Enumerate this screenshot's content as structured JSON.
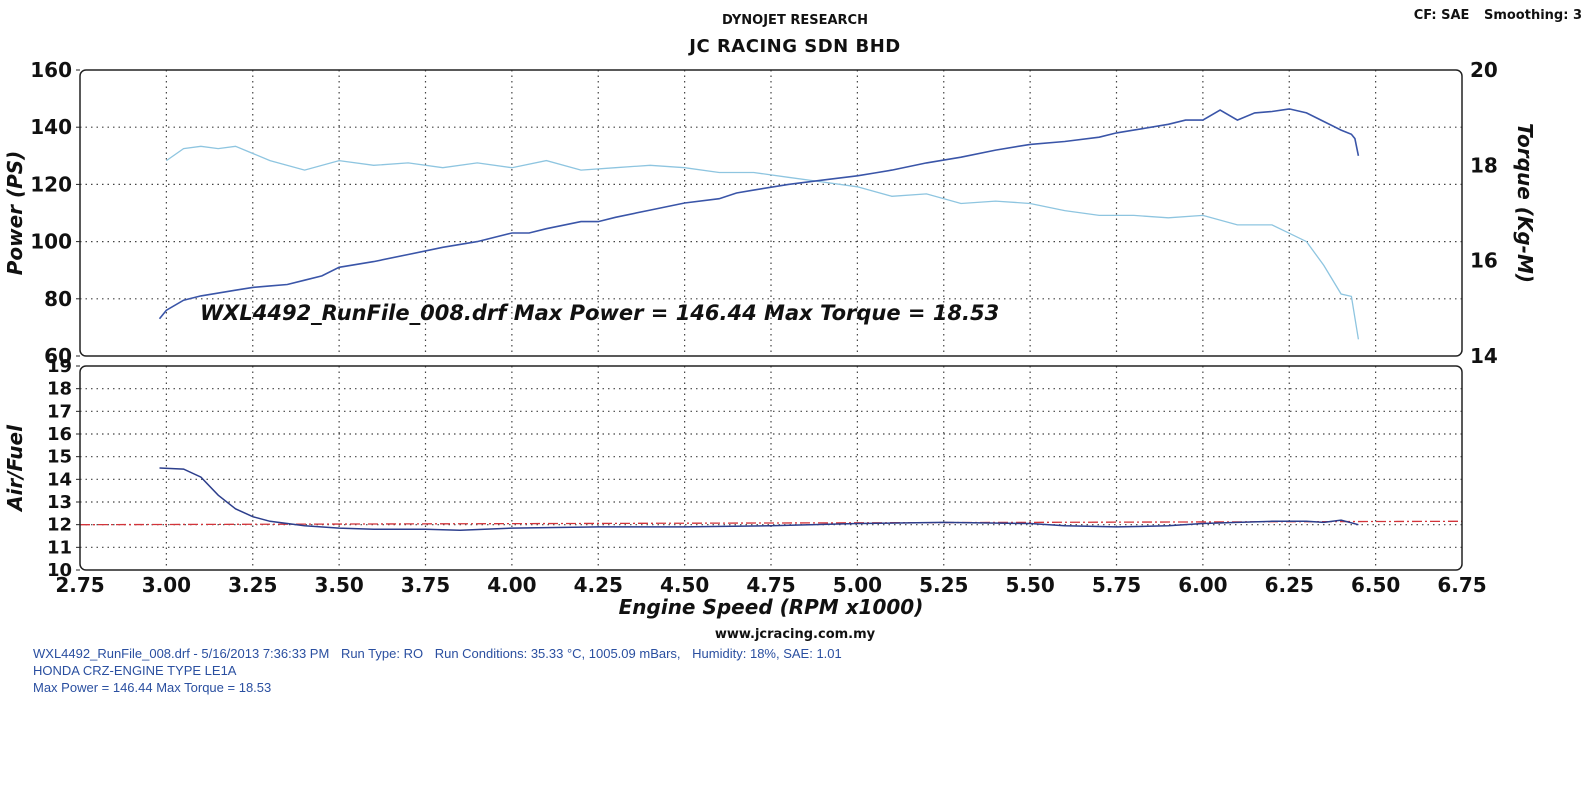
{
  "header": {
    "subtitle": "DYNOJET RESEARCH",
    "title": "JC RACING SDN BHD",
    "cf_label": "CF: SAE",
    "smoothing_label": "Smoothing: 3"
  },
  "website": "www.jcracing.com.my",
  "footer": {
    "run_part1": "WXL4492_RunFile_008.drf - 5/16/2013 7:36:33 PM",
    "run_part2": "Run Type: RO",
    "run_part3": "Run Conditions: 35.33 °C, 1005.09 mBars,",
    "run_part4": "Humidity: 18%, SAE: 1.01",
    "vehicle": "HONDA CRZ-ENGINE TYPE LE1A",
    "max_line": "Max Power = 146.44  Max Torque = 18.53"
  },
  "colors": {
    "power_line": "#3a55a8",
    "torque_line": "#8ec5e0",
    "afr_line": "#2c3e8c",
    "afr_target": "#d2343a",
    "grid": "#444444",
    "frame": "#222222"
  },
  "chart_data": [
    {
      "type": "line",
      "title": "",
      "annotation": "WXL4492_RunFile_008.drf Max Power = 146.44     Max Torque = 18.53",
      "xlabel": "",
      "ylabel": "Power (PS)",
      "y2label": "Torque (Kg-M)",
      "xlim": [
        2.75,
        6.75
      ],
      "ylim": [
        60,
        160
      ],
      "y2lim": [
        14,
        20
      ],
      "yticks": [
        60,
        80,
        100,
        120,
        140,
        160
      ],
      "y2ticks": [
        14,
        16,
        18,
        20
      ],
      "grid": true,
      "series": [
        {
          "name": "Power",
          "axis": "left",
          "x": [
            2.98,
            3.0,
            3.05,
            3.1,
            3.15,
            3.2,
            3.25,
            3.3,
            3.35,
            3.4,
            3.45,
            3.5,
            3.6,
            3.7,
            3.8,
            3.9,
            4.0,
            4.05,
            4.1,
            4.2,
            4.25,
            4.3,
            4.4,
            4.5,
            4.6,
            4.65,
            4.7,
            4.8,
            4.9,
            5.0,
            5.05,
            5.1,
            5.2,
            5.3,
            5.4,
            5.5,
            5.6,
            5.7,
            5.75,
            5.8,
            5.9,
            5.95,
            6.0,
            6.05,
            6.1,
            6.15,
            6.2,
            6.25,
            6.3,
            6.35,
            6.4,
            6.43,
            6.44,
            6.45
          ],
          "values": [
            73,
            76,
            79.5,
            81,
            82,
            83,
            84,
            84.5,
            85,
            86.5,
            88,
            91,
            93,
            95.5,
            98,
            100,
            103,
            103,
            104.5,
            107,
            107,
            108.5,
            111,
            113.5,
            115,
            117,
            118,
            120,
            121.5,
            123,
            124,
            125,
            127.5,
            129.5,
            132,
            134,
            135,
            136.5,
            138,
            139,
            141,
            142.5,
            142.5,
            146,
            142.5,
            145,
            145.5,
            146.4,
            145,
            142,
            139,
            137.5,
            136,
            130
          ]
        },
        {
          "name": "Torque",
          "axis": "right",
          "x": [
            3.0,
            3.05,
            3.1,
            3.15,
            3.2,
            3.3,
            3.4,
            3.5,
            3.6,
            3.7,
            3.8,
            3.9,
            4.0,
            4.1,
            4.2,
            4.3,
            4.4,
            4.5,
            4.6,
            4.7,
            4.8,
            4.9,
            5.0,
            5.1,
            5.2,
            5.3,
            5.4,
            5.5,
            5.6,
            5.7,
            5.8,
            5.9,
            6.0,
            6.1,
            6.2,
            6.3,
            6.35,
            6.4,
            6.43,
            6.45
          ],
          "values": [
            18.1,
            18.35,
            18.4,
            18.35,
            18.4,
            18.1,
            17.9,
            18.1,
            18.0,
            18.05,
            17.95,
            18.05,
            17.95,
            18.1,
            17.9,
            17.95,
            18.0,
            17.95,
            17.85,
            17.85,
            17.75,
            17.65,
            17.55,
            17.35,
            17.4,
            17.2,
            17.25,
            17.2,
            17.05,
            16.95,
            16.95,
            16.9,
            16.95,
            16.75,
            16.75,
            16.4,
            15.9,
            15.3,
            15.25,
            14.35
          ]
        }
      ]
    },
    {
      "type": "line",
      "title": "",
      "xlabel": "Engine Speed (RPM x1000)",
      "ylabel": "Air/Fuel",
      "xlim": [
        2.75,
        6.75
      ],
      "ylim": [
        10,
        19
      ],
      "xticks": [
        2.75,
        3.0,
        3.25,
        3.5,
        3.75,
        4.0,
        4.25,
        4.5,
        4.75,
        5.0,
        5.25,
        5.5,
        5.75,
        6.0,
        6.25,
        6.5,
        6.75
      ],
      "xticklabels": [
        "2.75",
        "3.00",
        "3.25",
        "3.50",
        "3.75",
        "4.00",
        "4.25",
        "4.50",
        "4.75",
        "5.00",
        "5.25",
        "5.50",
        "5.75",
        "6.00",
        "6.25",
        "6.50",
        "6.75"
      ],
      "yticks": [
        10,
        11,
        12,
        13,
        14,
        15,
        16,
        17,
        18,
        19
      ],
      "grid": true,
      "series": [
        {
          "name": "Air/Fuel",
          "x": [
            2.98,
            3.05,
            3.1,
            3.15,
            3.2,
            3.25,
            3.3,
            3.35,
            3.4,
            3.5,
            3.6,
            3.75,
            3.85,
            4.0,
            4.25,
            4.5,
            4.75,
            5.0,
            5.25,
            5.5,
            5.6,
            5.75,
            5.9,
            6.0,
            6.1,
            6.2,
            6.3,
            6.35,
            6.4,
            6.45
          ],
          "values": [
            14.5,
            14.45,
            14.1,
            13.3,
            12.7,
            12.35,
            12.15,
            12.05,
            11.95,
            11.85,
            11.8,
            11.8,
            11.75,
            11.85,
            11.9,
            11.9,
            11.95,
            12.05,
            12.1,
            12.05,
            11.95,
            11.9,
            11.95,
            12.05,
            12.1,
            12.15,
            12.15,
            12.1,
            12.2,
            12.0
          ]
        },
        {
          "name": "Target",
          "x": [
            2.75,
            6.75
          ],
          "values": [
            12.0,
            12.15
          ]
        }
      ]
    }
  ]
}
